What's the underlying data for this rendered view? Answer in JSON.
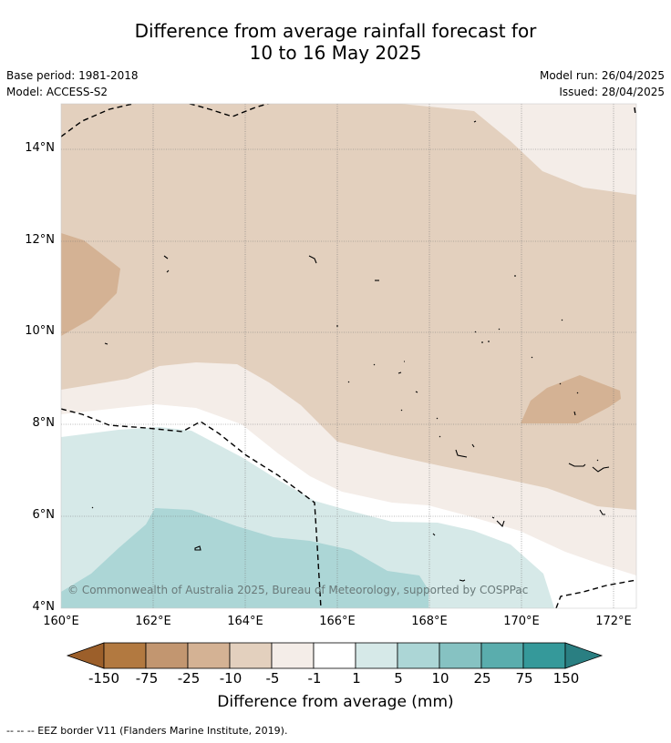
{
  "title": {
    "line1": "Difference from average rainfall forecast for",
    "line2": "10 to 16 May 2025"
  },
  "metadata": {
    "base_period": "Base period: 1981-2018",
    "model": "Model: ACCESS-S2",
    "model_run": "Model run: 26/04/2025",
    "issued": "Issued: 28/04/2025"
  },
  "map": {
    "lat_labels": [
      "14°N",
      "12°N",
      "10°N",
      "8°N",
      "6°N",
      "4°N"
    ],
    "lon_labels": [
      "160°E",
      "162°E",
      "164°E",
      "166°E",
      "168°E",
      "170°E",
      "172°E"
    ],
    "copyright": "© Commonwealth of Australia 2025, Bureau of Meteorology, supported by COSPPac",
    "category_colors": {
      "dry_-75_-25": "#c29670",
      "dry_-25_-10": "#d4b294",
      "dry_-10_-5": "#e3d0be",
      "dry_-5_-1": "#f4ede8",
      "neutral_-1_1": "#ffffff",
      "wet_1_5": "#d6e9e8",
      "wet_5_10": "#acd6d6"
    }
  },
  "colorbar": {
    "tick_labels": [
      "-150",
      "-75",
      "-25",
      "-10",
      "-5",
      "-1",
      "1",
      "5",
      "10",
      "25",
      "75",
      "150"
    ],
    "colors": [
      "#9c5f2a",
      "#b27940",
      "#c29670",
      "#d4b294",
      "#e3d0be",
      "#f4ede8",
      "#ffffff",
      "#d6e9e8",
      "#acd6d6",
      "#86c2c2",
      "#5aadad",
      "#35999a",
      "#2a7f82"
    ],
    "label": "Difference from average (mm)"
  },
  "footer": {
    "legend": "--  --  -- EEZ border V11 (Flanders Marine Institute, 2019)."
  }
}
